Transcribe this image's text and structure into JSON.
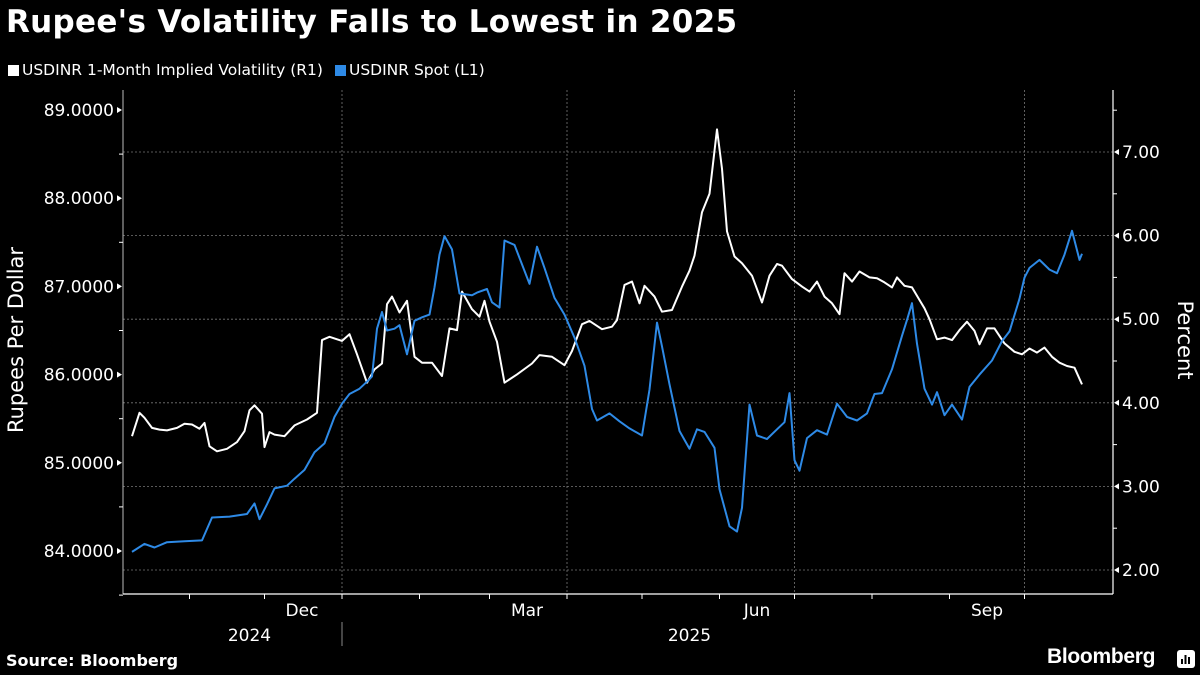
{
  "header": {
    "title": "Rupee's Volatility Falls to Lowest in 2025"
  },
  "legend": [
    {
      "label": "USDINR 1-Month Implied Volatility (R1)",
      "color": "#ffffff"
    },
    {
      "label": "USDINR Spot (L1)",
      "color": "#2e8ae6"
    }
  ],
  "footer": {
    "source": "Source: Bloomberg",
    "brand": "Bloomberg"
  },
  "chart_data": {
    "type": "line",
    "title": "Rupee's Volatility Falls to Lowest in 2025",
    "xlabel": "",
    "ylabel_left": "Rupees Per Dollar",
    "ylabel_right": "Percent",
    "ylim_left": [
      83.5,
      89.3
    ],
    "ylim_right": [
      1.7,
      7.7
    ],
    "yticks_left": [
      "84.0000",
      "85.0000",
      "86.0000",
      "87.0000",
      "88.0000",
      "89.0000"
    ],
    "yticks_right": [
      "2.00",
      "3.00",
      "4.00",
      "5.00",
      "6.00",
      "7.00"
    ],
    "xlim": [
      "2024-10-09",
      "2025-10-24"
    ],
    "x_month_labels": [
      {
        "label": "Dec",
        "date": "2024-12-16"
      },
      {
        "label": "Mar",
        "date": "2025-03-16"
      },
      {
        "label": "Jun",
        "date": "2025-06-16"
      },
      {
        "label": "Sep",
        "date": "2025-09-16"
      }
    ],
    "x_year_labels": [
      {
        "label": "2024",
        "date": "2024-11-25"
      },
      {
        "label": "2025",
        "date": "2025-05-20"
      }
    ],
    "grid": true,
    "legend_position": "top-left",
    "series": [
      {
        "name": "USDINR 1-Month Implied Volatility (R1)",
        "axis": "right",
        "color": "#ffffff",
        "points": [
          [
            "2024-10-09",
            3.6
          ],
          [
            "2024-10-12",
            3.88
          ],
          [
            "2024-10-14",
            3.82
          ],
          [
            "2024-10-17",
            3.7
          ],
          [
            "2024-10-20",
            3.68
          ],
          [
            "2024-10-23",
            3.67
          ],
          [
            "2024-10-27",
            3.7
          ],
          [
            "2024-10-30",
            3.75
          ],
          [
            "2024-11-02",
            3.74
          ],
          [
            "2024-11-05",
            3.69
          ],
          [
            "2024-11-07",
            3.76
          ],
          [
            "2024-11-09",
            3.48
          ],
          [
            "2024-11-12",
            3.42
          ],
          [
            "2024-11-16",
            3.45
          ],
          [
            "2024-11-20",
            3.53
          ],
          [
            "2024-11-23",
            3.66
          ],
          [
            "2024-11-25",
            3.91
          ],
          [
            "2024-11-27",
            3.97
          ],
          [
            "2024-11-30",
            3.87
          ],
          [
            "2024-12-01",
            3.47
          ],
          [
            "2024-12-03",
            3.65
          ],
          [
            "2024-12-05",
            3.62
          ],
          [
            "2024-12-09",
            3.6
          ],
          [
            "2024-12-13",
            3.73
          ],
          [
            "2024-12-18",
            3.8
          ],
          [
            "2024-12-22",
            3.88
          ],
          [
            "2024-12-24",
            4.75
          ],
          [
            "2024-12-27",
            4.79
          ],
          [
            "2025-01-01",
            4.74
          ],
          [
            "2025-01-04",
            4.82
          ],
          [
            "2025-01-07",
            4.58
          ],
          [
            "2025-01-11",
            4.24
          ],
          [
            "2025-01-14",
            4.4
          ],
          [
            "2025-01-17",
            4.47
          ],
          [
            "2025-01-19",
            5.18
          ],
          [
            "2025-01-21",
            5.27
          ],
          [
            "2025-01-24",
            5.08
          ],
          [
            "2025-01-27",
            5.22
          ],
          [
            "2025-01-30",
            4.55
          ],
          [
            "2025-02-02",
            4.48
          ],
          [
            "2025-02-06",
            4.48
          ],
          [
            "2025-02-10",
            4.32
          ],
          [
            "2025-02-13",
            4.89
          ],
          [
            "2025-02-16",
            4.87
          ],
          [
            "2025-02-18",
            5.33
          ],
          [
            "2025-02-22",
            5.12
          ],
          [
            "2025-02-25",
            5.03
          ],
          [
            "2025-02-27",
            5.22
          ],
          [
            "2025-03-01",
            4.97
          ],
          [
            "2025-03-04",
            4.73
          ],
          [
            "2025-03-07",
            4.24
          ],
          [
            "2025-03-12",
            4.34
          ],
          [
            "2025-03-18",
            4.47
          ],
          [
            "2025-03-21",
            4.57
          ],
          [
            "2025-03-26",
            4.55
          ],
          [
            "2025-03-31",
            4.45
          ],
          [
            "2025-04-03",
            4.62
          ],
          [
            "2025-04-07",
            4.94
          ],
          [
            "2025-04-10",
            4.98
          ],
          [
            "2025-04-15",
            4.88
          ],
          [
            "2025-04-19",
            4.91
          ],
          [
            "2025-04-21",
            4.99
          ],
          [
            "2025-04-24",
            5.41
          ],
          [
            "2025-04-27",
            5.45
          ],
          [
            "2025-04-30",
            5.19
          ],
          [
            "2025-05-02",
            5.4
          ],
          [
            "2025-05-06",
            5.27
          ],
          [
            "2025-05-09",
            5.09
          ],
          [
            "2025-05-13",
            5.11
          ],
          [
            "2025-05-17",
            5.39
          ],
          [
            "2025-05-20",
            5.58
          ],
          [
            "2025-05-22",
            5.76
          ],
          [
            "2025-05-25",
            6.28
          ],
          [
            "2025-05-28",
            6.5
          ],
          [
            "2025-05-31",
            7.27
          ],
          [
            "2025-06-02",
            6.8
          ],
          [
            "2025-06-04",
            6.05
          ],
          [
            "2025-06-07",
            5.75
          ],
          [
            "2025-06-10",
            5.67
          ],
          [
            "2025-06-14",
            5.52
          ],
          [
            "2025-06-18",
            5.2
          ],
          [
            "2025-06-21",
            5.52
          ],
          [
            "2025-06-24",
            5.66
          ],
          [
            "2025-06-26",
            5.64
          ],
          [
            "2025-06-30",
            5.48
          ],
          [
            "2025-07-04",
            5.39
          ],
          [
            "2025-07-07",
            5.33
          ],
          [
            "2025-07-10",
            5.45
          ],
          [
            "2025-07-13",
            5.27
          ],
          [
            "2025-07-16",
            5.19
          ],
          [
            "2025-07-19",
            5.06
          ],
          [
            "2025-07-21",
            5.55
          ],
          [
            "2025-07-24",
            5.45
          ],
          [
            "2025-07-27",
            5.57
          ],
          [
            "2025-07-31",
            5.5
          ],
          [
            "2025-08-03",
            5.49
          ],
          [
            "2025-08-06",
            5.44
          ],
          [
            "2025-08-09",
            5.38
          ],
          [
            "2025-08-11",
            5.5
          ],
          [
            "2025-08-14",
            5.4
          ],
          [
            "2025-08-17",
            5.38
          ],
          [
            "2025-08-20",
            5.23
          ],
          [
            "2025-08-22",
            5.13
          ],
          [
            "2025-08-24",
            5.0
          ],
          [
            "2025-08-27",
            4.76
          ],
          [
            "2025-08-30",
            4.78
          ],
          [
            "2025-09-02",
            4.75
          ],
          [
            "2025-09-05",
            4.87
          ],
          [
            "2025-09-08",
            4.97
          ],
          [
            "2025-09-11",
            4.86
          ],
          [
            "2025-09-13",
            4.7
          ],
          [
            "2025-09-16",
            4.89
          ],
          [
            "2025-09-19",
            4.89
          ],
          [
            "2025-09-23",
            4.71
          ],
          [
            "2025-09-27",
            4.61
          ],
          [
            "2025-09-30",
            4.58
          ],
          [
            "2025-10-03",
            4.65
          ],
          [
            "2025-10-06",
            4.6
          ],
          [
            "2025-10-09",
            4.66
          ],
          [
            "2025-10-12",
            4.55
          ],
          [
            "2025-10-15",
            4.48
          ],
          [
            "2025-10-18",
            4.44
          ],
          [
            "2025-10-21",
            4.42
          ],
          [
            "2025-10-24",
            4.22
          ]
        ]
      },
      {
        "name": "USDINR Spot (L1)",
        "axis": "left",
        "color": "#2e8ae6",
        "points": [
          [
            "2024-10-09",
            83.99
          ],
          [
            "2024-10-14",
            84.08
          ],
          [
            "2024-10-18",
            84.04
          ],
          [
            "2024-10-23",
            84.1
          ],
          [
            "2024-10-30",
            84.11
          ],
          [
            "2024-11-06",
            84.12
          ],
          [
            "2024-11-10",
            84.38
          ],
          [
            "2024-11-17",
            84.39
          ],
          [
            "2024-11-24",
            84.42
          ],
          [
            "2024-11-27",
            84.54
          ],
          [
            "2024-11-29",
            84.36
          ],
          [
            "2024-12-02",
            84.53
          ],
          [
            "2024-12-05",
            84.71
          ],
          [
            "2024-12-10",
            84.74
          ],
          [
            "2024-12-13",
            84.82
          ],
          [
            "2024-12-17",
            84.92
          ],
          [
            "2024-12-21",
            85.12
          ],
          [
            "2024-12-25",
            85.22
          ],
          [
            "2024-12-29",
            85.52
          ],
          [
            "2025-01-01",
            85.67
          ],
          [
            "2025-01-04",
            85.78
          ],
          [
            "2025-01-08",
            85.84
          ],
          [
            "2025-01-11",
            85.92
          ],
          [
            "2025-01-13",
            85.98
          ],
          [
            "2025-01-15",
            86.52
          ],
          [
            "2025-01-17",
            86.71
          ],
          [
            "2025-01-19",
            86.5
          ],
          [
            "2025-01-22",
            86.52
          ],
          [
            "2025-01-24",
            86.56
          ],
          [
            "2025-01-27",
            86.23
          ],
          [
            "2025-01-30",
            86.61
          ],
          [
            "2025-02-02",
            86.65
          ],
          [
            "2025-02-05",
            86.68
          ],
          [
            "2025-02-07",
            86.99
          ],
          [
            "2025-02-09",
            87.36
          ],
          [
            "2025-02-11",
            87.57
          ],
          [
            "2025-02-14",
            87.42
          ],
          [
            "2025-02-17",
            86.92
          ],
          [
            "2025-02-22",
            86.9
          ],
          [
            "2025-02-24",
            86.93
          ],
          [
            "2025-02-28",
            86.97
          ],
          [
            "2025-03-02",
            86.82
          ],
          [
            "2025-03-05",
            86.76
          ],
          [
            "2025-03-07",
            87.52
          ],
          [
            "2025-03-11",
            87.47
          ],
          [
            "2025-03-14",
            87.25
          ],
          [
            "2025-03-17",
            87.03
          ],
          [
            "2025-03-20",
            87.45
          ],
          [
            "2025-03-23",
            87.21
          ],
          [
            "2025-03-27",
            86.87
          ],
          [
            "2025-03-31",
            86.68
          ],
          [
            "2025-04-04",
            86.42
          ],
          [
            "2025-04-08",
            86.1
          ],
          [
            "2025-04-11",
            85.61
          ],
          [
            "2025-04-13",
            85.48
          ],
          [
            "2025-04-18",
            85.56
          ],
          [
            "2025-04-22",
            85.47
          ],
          [
            "2025-04-26",
            85.39
          ],
          [
            "2025-05-01",
            85.31
          ],
          [
            "2025-05-04",
            85.83
          ],
          [
            "2025-05-07",
            86.59
          ],
          [
            "2025-05-09",
            86.32
          ],
          [
            "2025-05-12",
            85.89
          ],
          [
            "2025-05-16",
            85.36
          ],
          [
            "2025-05-20",
            85.16
          ],
          [
            "2025-05-23",
            85.38
          ],
          [
            "2025-05-26",
            85.35
          ],
          [
            "2025-05-30",
            85.17
          ],
          [
            "2025-06-01",
            84.7
          ],
          [
            "2025-06-05",
            84.28
          ],
          [
            "2025-06-08",
            84.22
          ],
          [
            "2025-06-10",
            84.49
          ],
          [
            "2025-06-13",
            85.66
          ],
          [
            "2025-06-16",
            85.31
          ],
          [
            "2025-06-20",
            85.27
          ],
          [
            "2025-06-24",
            85.38
          ],
          [
            "2025-06-27",
            85.46
          ],
          [
            "2025-06-29",
            85.79
          ],
          [
            "2025-07-01",
            85.03
          ],
          [
            "2025-07-03",
            84.91
          ],
          [
            "2025-07-06",
            85.28
          ],
          [
            "2025-07-10",
            85.37
          ],
          [
            "2025-07-14",
            85.32
          ],
          [
            "2025-07-18",
            85.67
          ],
          [
            "2025-07-22",
            85.52
          ],
          [
            "2025-07-26",
            85.48
          ],
          [
            "2025-07-30",
            85.56
          ],
          [
            "2025-08-02",
            85.78
          ],
          [
            "2025-08-05",
            85.79
          ],
          [
            "2025-08-09",
            86.06
          ],
          [
            "2025-08-13",
            86.44
          ],
          [
            "2025-08-15",
            86.62
          ],
          [
            "2025-08-17",
            86.81
          ],
          [
            "2025-08-19",
            86.35
          ],
          [
            "2025-08-22",
            85.84
          ],
          [
            "2025-08-25",
            85.66
          ],
          [
            "2025-08-27",
            85.8
          ],
          [
            "2025-08-30",
            85.54
          ],
          [
            "2025-09-02",
            85.66
          ],
          [
            "2025-09-06",
            85.49
          ],
          [
            "2025-09-09",
            85.86
          ],
          [
            "2025-09-13",
            86.0
          ],
          [
            "2025-09-18",
            86.16
          ],
          [
            "2025-09-22",
            86.38
          ],
          [
            "2025-09-25",
            86.49
          ],
          [
            "2025-09-29",
            86.86
          ],
          [
            "2025-10-01",
            87.1
          ],
          [
            "2025-10-03",
            87.21
          ],
          [
            "2025-10-07",
            87.3
          ],
          [
            "2025-10-11",
            87.19
          ],
          [
            "2025-10-14",
            87.15
          ],
          [
            "2025-10-17",
            87.36
          ],
          [
            "2025-10-20",
            87.63
          ],
          [
            "2025-10-23",
            87.3
          ],
          [
            "2025-10-24",
            87.37
          ]
        ]
      }
    ]
  }
}
